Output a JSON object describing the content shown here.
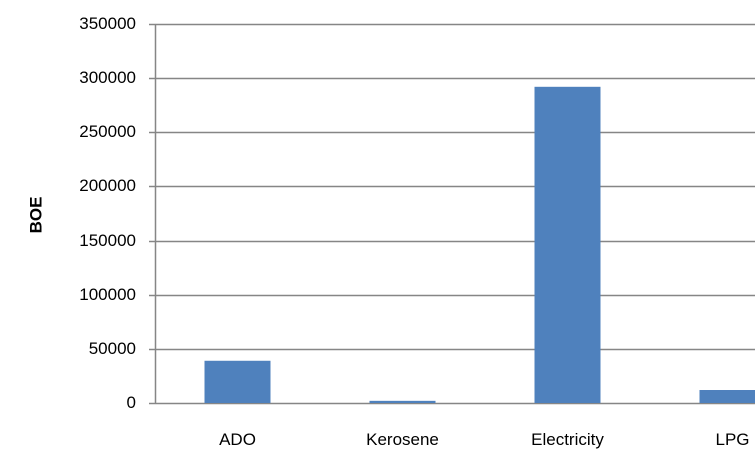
{
  "chart_data": {
    "type": "bar",
    "title": "",
    "xlabel": "",
    "ylabel": "BOE",
    "categories": [
      "ADO",
      "Kerosene",
      "Electricity",
      "LPG"
    ],
    "values": [
      39000,
      2000,
      292000,
      12000
    ],
    "ylim": [
      0,
      350000
    ],
    "yticks": [
      0,
      50000,
      100000,
      150000,
      200000,
      250000,
      300000,
      350000
    ],
    "ytick_labels": [
      "0",
      "50000",
      "100000",
      "150000",
      "200000",
      "250000",
      "300000",
      "350000"
    ],
    "grid": true,
    "legend": "none",
    "colors": {
      "bar": "#4F81BD",
      "grid": "#868686",
      "axis": "#868686",
      "text": "#000000"
    }
  }
}
